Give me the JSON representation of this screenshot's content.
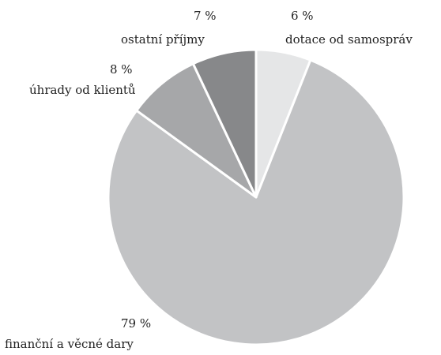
{
  "chart_data": {
    "type": "pie",
    "start": "top",
    "direction": "clockwise",
    "slices": [
      {
        "label": "dotace od samospráv",
        "value": 6,
        "value_label": "6 %",
        "color": "#e5e6e7"
      },
      {
        "label": "finanční a věcné dary",
        "value": 79,
        "value_label": "79 %",
        "color": "#c2c3c5"
      },
      {
        "label": "úhrady od klientů",
        "value": 8,
        "value_label": "8 %",
        "color": "#a6a7a9"
      },
      {
        "label": "ostatní příjmy",
        "value": 7,
        "value_label": "7 %",
        "color": "#87888a"
      }
    ],
    "slice_border_color": "#ffffff"
  }
}
